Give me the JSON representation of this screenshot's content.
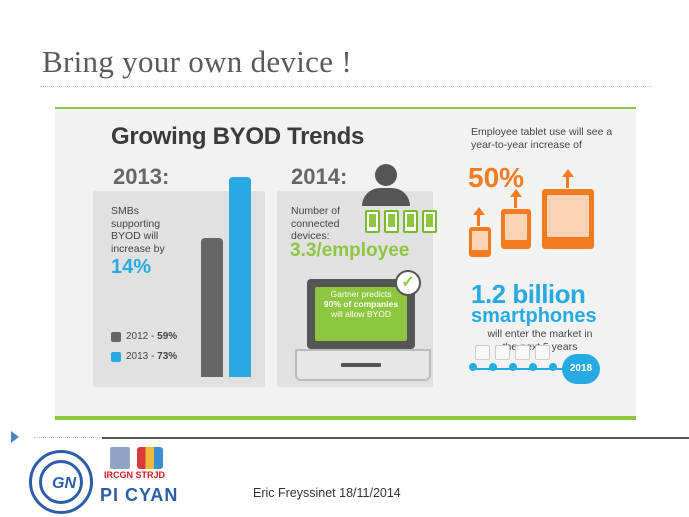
{
  "slide": {
    "title": "Bring your own device !",
    "footer": "Eric Freyssinet 18/11/2014"
  },
  "infographic": {
    "title": "Growing BYOD Trends",
    "section_2013": {
      "year": "2013:",
      "text": "SMBs supporting BYOD will increase by",
      "value": "14%",
      "legend": [
        {
          "label": "2012 - ",
          "value": "59%",
          "color": "#666666"
        },
        {
          "label": "2013 - ",
          "value": "73%",
          "color": "#27a9e1"
        }
      ],
      "bars": [
        {
          "name": "2012",
          "value": 59,
          "color": "#666666"
        },
        {
          "name": "2013",
          "value": 73,
          "color": "#27a9e1"
        }
      ]
    },
    "section_2014": {
      "year": "2014:",
      "text": "Number of connected devices:",
      "value": "3.3/employee",
      "laptop_text_1": "Gartner predicts",
      "laptop_text_2": "90% of companies",
      "laptop_text_3": "will allow BYOD",
      "check_icon": "check-icon"
    },
    "section_tablet": {
      "text": "Employee tablet use will see a year-to-year increase of",
      "value": "50%"
    },
    "section_smartphones": {
      "value": "1.2 billion",
      "label": "smartphones",
      "text": "will enter the market in the next 5 years",
      "year_badge": "2018"
    },
    "colors": {
      "green": "#8dc63f",
      "blue": "#27a9e1",
      "orange": "#f47b20",
      "gray": "#666666"
    }
  },
  "logos": {
    "logo1_text": "GN",
    "logo2_line1": "IRCGN STRJD",
    "logo2_line2": "PI CYAN"
  }
}
